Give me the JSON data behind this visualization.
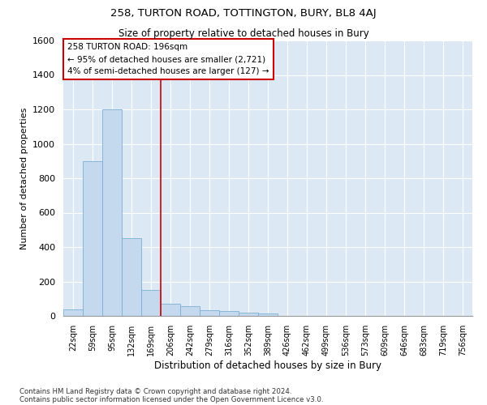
{
  "title": "258, TURTON ROAD, TOTTINGTON, BURY, BL8 4AJ",
  "subtitle": "Size of property relative to detached houses in Bury",
  "xlabel": "Distribution of detached houses by size in Bury",
  "ylabel": "Number of detached properties",
  "bar_color": "#c5d9ee",
  "bar_edge_color": "#7bafd4",
  "background_color": "#dce9f5",
  "grid_color": "#ffffff",
  "categories": [
    "22sqm",
    "59sqm",
    "95sqm",
    "132sqm",
    "169sqm",
    "206sqm",
    "242sqm",
    "279sqm",
    "316sqm",
    "352sqm",
    "389sqm",
    "426sqm",
    "462sqm",
    "499sqm",
    "536sqm",
    "573sqm",
    "609sqm",
    "646sqm",
    "683sqm",
    "719sqm",
    "756sqm"
  ],
  "values": [
    40,
    900,
    1200,
    450,
    150,
    70,
    55,
    35,
    30,
    20,
    15,
    0,
    0,
    0,
    0,
    0,
    0,
    0,
    0,
    0,
    0
  ],
  "ylim": [
    0,
    1600
  ],
  "yticks": [
    0,
    200,
    400,
    600,
    800,
    1000,
    1200,
    1400,
    1600
  ],
  "property_line_x": 4.5,
  "property_line_color": "#cc0000",
  "annotation_text": "258 TURTON ROAD: 196sqm\n← 95% of detached houses are smaller (2,721)\n4% of semi-detached houses are larger (127) →",
  "footer1": "Contains HM Land Registry data © Crown copyright and database right 2024.",
  "footer2": "Contains public sector information licensed under the Open Government Licence v3.0."
}
